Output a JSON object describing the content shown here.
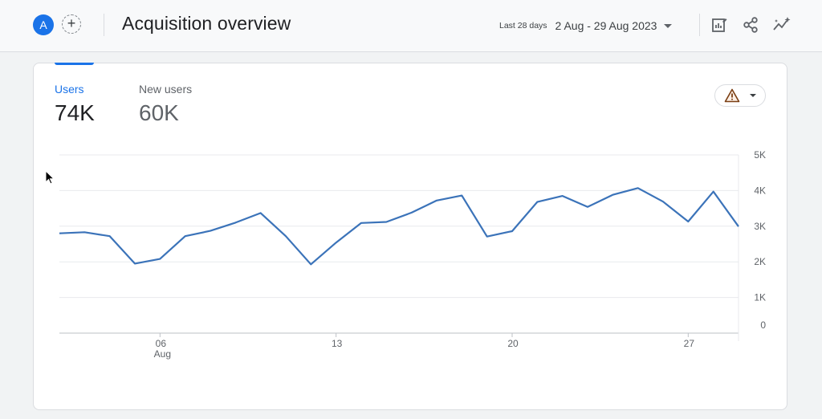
{
  "header": {
    "avatar_letter": "A",
    "title": "Acquisition overview",
    "date_chip": "Last 28 days",
    "date_range": "2 Aug - 29 Aug 2023",
    "icons": [
      "customize-report-icon",
      "share-icon",
      "insights-icon"
    ]
  },
  "metrics": {
    "users": {
      "label": "Users",
      "value": "74K"
    },
    "new_users": {
      "label": "New users",
      "value": "60K"
    }
  },
  "colors": {
    "accent": "#1a73e8",
    "line": "#3b73b9",
    "warning": "#b06000"
  },
  "chart_data": {
    "type": "line",
    "x": [
      "2 Aug",
      "3 Aug",
      "4 Aug",
      "5 Aug",
      "6 Aug",
      "7 Aug",
      "8 Aug",
      "9 Aug",
      "10 Aug",
      "11 Aug",
      "12 Aug",
      "13 Aug",
      "14 Aug",
      "15 Aug",
      "16 Aug",
      "17 Aug",
      "18 Aug",
      "19 Aug",
      "20 Aug",
      "21 Aug",
      "22 Aug",
      "23 Aug",
      "24 Aug",
      "25 Aug",
      "26 Aug",
      "27 Aug",
      "28 Aug",
      "29 Aug"
    ],
    "series": [
      {
        "values": [
          2800,
          2830,
          2720,
          1950,
          2080,
          2720,
          2870,
          3100,
          3370,
          2720,
          1930,
          2540,
          3090,
          3120,
          3380,
          3720,
          3860,
          2710,
          2860,
          3680,
          3850,
          3540,
          3880,
          4070,
          3690,
          3130,
          3970,
          2990
        ]
      }
    ],
    "x_ticks": [
      {
        "index": 4,
        "label": "06",
        "sublabel": "Aug"
      },
      {
        "index": 11,
        "label": "13",
        "sublabel": ""
      },
      {
        "index": 18,
        "label": "20",
        "sublabel": ""
      },
      {
        "index": 25,
        "label": "27",
        "sublabel": ""
      }
    ],
    "y_ticks": [
      {
        "value": 5000,
        "label": "5K"
      },
      {
        "value": 4000,
        "label": "4K"
      },
      {
        "value": 3000,
        "label": "3K"
      },
      {
        "value": 2000,
        "label": "2K"
      },
      {
        "value": 1000,
        "label": "1K"
      },
      {
        "value": 0,
        "label": "0"
      }
    ],
    "ylim": [
      0,
      5000
    ],
    "grid": true
  }
}
